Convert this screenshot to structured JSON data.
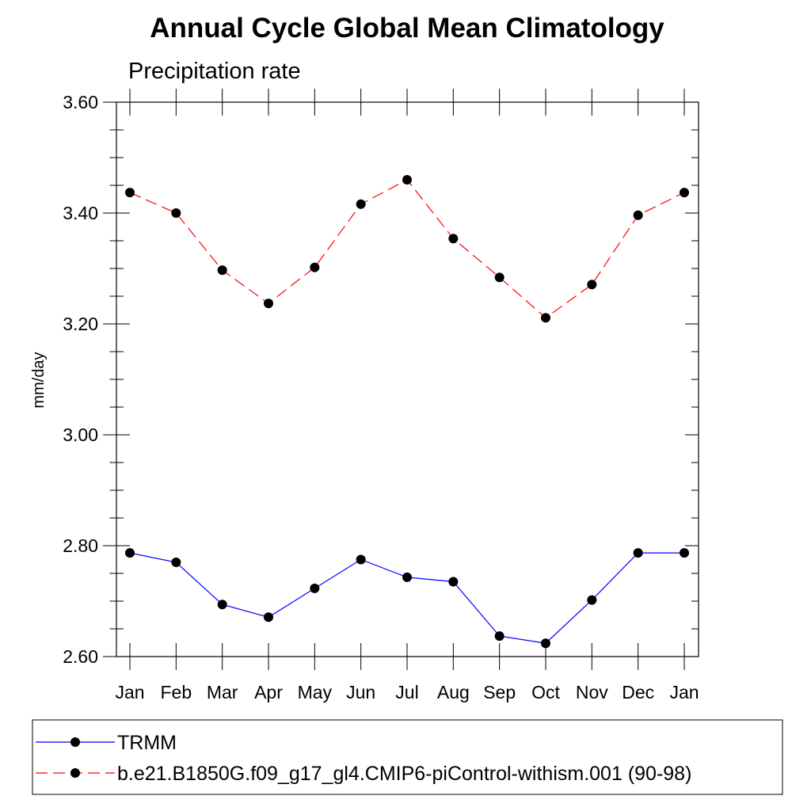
{
  "chart_data": {
    "type": "line",
    "title": "Annual Cycle Global Mean Climatology",
    "subtitle": "Precipitation rate",
    "xlabel": "",
    "ylabel": "mm/day",
    "categories": [
      "Jan",
      "Feb",
      "Mar",
      "Apr",
      "May",
      "Jun",
      "Jul",
      "Aug",
      "Sep",
      "Oct",
      "Nov",
      "Dec",
      "Jan"
    ],
    "ylim": [
      2.6,
      3.6
    ],
    "yticks": [
      2.6,
      2.8,
      3.0,
      3.2,
      3.4,
      3.6
    ],
    "ytick_labels": [
      "2.60",
      "2.80",
      "3.00",
      "3.20",
      "3.40",
      "3.60"
    ],
    "grid": false,
    "legend_position": "bottom",
    "series": [
      {
        "name": "TRMM",
        "color": "#0000ff",
        "line_style": "solid",
        "marker": "filled-circle",
        "values": [
          2.787,
          2.77,
          2.694,
          2.671,
          2.723,
          2.775,
          2.743,
          2.735,
          2.637,
          2.624,
          2.702,
          2.787,
          2.787
        ]
      },
      {
        "name": "b.e21.B1850G.f09_g17_gl4.CMIP6-piControl-withism.001 (90-98)",
        "color": "#ff0000",
        "line_style": "dashed",
        "marker": "filled-circle",
        "values": [
          3.437,
          3.4,
          3.297,
          3.237,
          3.302,
          3.416,
          3.46,
          3.354,
          3.284,
          3.211,
          3.271,
          3.396,
          3.437
        ]
      }
    ]
  }
}
